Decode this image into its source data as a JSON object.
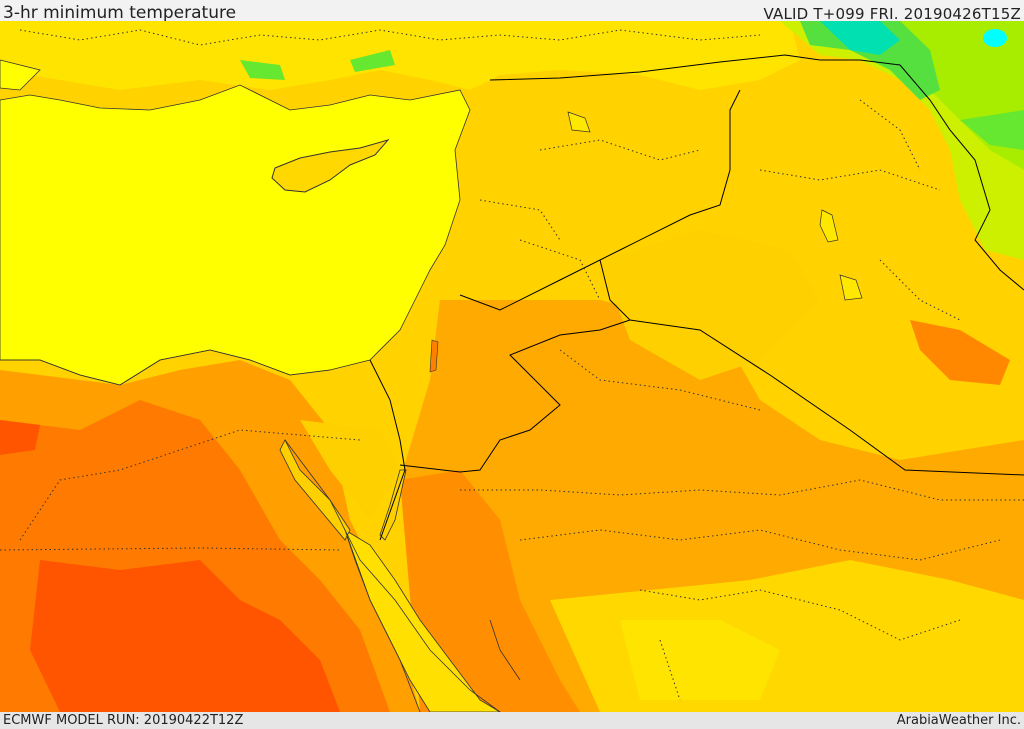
{
  "header": {
    "title": "3-hr minimum temperature",
    "valid": "VALID T+099 FRI. 20190426T15Z"
  },
  "footer": {
    "model_run": "ECMWF MODEL RUN: 20190422T12Z",
    "credit": "ArabiaWeather Inc."
  },
  "palette": {
    "sea": "#ffff00",
    "light_yellow": "#ffef00",
    "yellow": "#ffd800",
    "light_orange": "#ffbb00",
    "orange": "#ff9f00",
    "dark_orange": "#ff7a00",
    "red_orange": "#ff5500",
    "green": "#66e830",
    "teal": "#00e0b0",
    "lime": "#b8f000",
    "cyan": "#00ffff",
    "coast": "#333333",
    "border": "#000000"
  }
}
